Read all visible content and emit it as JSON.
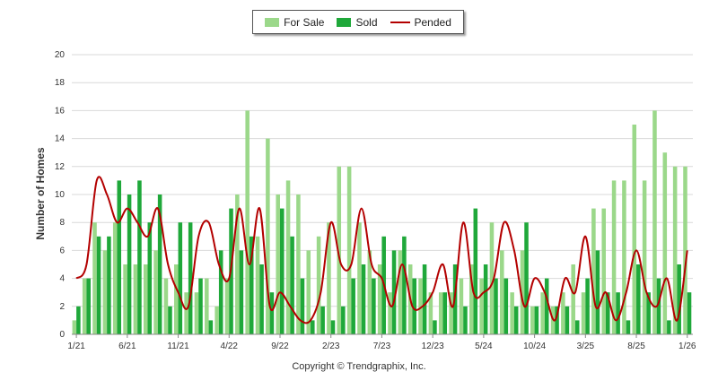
{
  "legend": {
    "for_sale": "For Sale",
    "sold": "Sold",
    "pended": "Pended"
  },
  "copyright": "Copyright © Trendgraphix, Inc.",
  "colors": {
    "for_sale": "#9bd88a",
    "sold": "#1fa83a",
    "pended": "#b30000",
    "grid": "#d9d9d9"
  },
  "chart_data": {
    "type": "bar",
    "ylabel": "Number of Homes",
    "ylim": [
      0,
      20
    ],
    "yticks": [
      0,
      2,
      4,
      6,
      8,
      10,
      12,
      14,
      16,
      18,
      20
    ],
    "grid": true,
    "legend_position": "top-center",
    "xtick_labels": [
      "1/21",
      "6/21",
      "11/21",
      "4/22",
      "9/22",
      "2/23",
      "7/23",
      "12/23",
      "5/24",
      "10/24",
      "3/25",
      "8/25",
      "1/26"
    ],
    "categories": [
      "1/21",
      "2/21",
      "3/21",
      "4/21",
      "5/21",
      "6/21",
      "7/21",
      "8/21",
      "9/21",
      "10/21",
      "11/21",
      "12/21",
      "1/22",
      "2/22",
      "3/22",
      "4/22",
      "5/22",
      "6/22",
      "7/22",
      "8/22",
      "9/22",
      "10/22",
      "11/22",
      "12/22",
      "1/23",
      "2/23",
      "3/23",
      "4/23",
      "5/23",
      "6/23",
      "7/23",
      "8/23",
      "9/23",
      "10/23",
      "11/23",
      "12/23",
      "1/24",
      "2/24",
      "3/24",
      "4/24",
      "5/24",
      "6/24",
      "7/24",
      "8/24",
      "9/24",
      "10/24",
      "11/24",
      "12/24",
      "1/25",
      "2/25",
      "3/25",
      "4/25",
      "5/25",
      "6/25",
      "7/25",
      "8/25",
      "9/25",
      "10/25",
      "11/25",
      "12/25",
      "1/26"
    ],
    "series": [
      {
        "name": "For Sale",
        "type": "bar",
        "values": [
          1,
          4,
          8,
          6,
          8,
          5,
          5,
          5,
          6,
          4,
          5,
          3,
          3,
          4,
          2,
          4,
          10,
          16,
          7,
          14,
          10,
          11,
          10,
          6,
          7,
          8,
          12,
          12,
          8,
          6,
          5,
          3,
          6,
          5,
          4,
          3,
          3,
          3,
          4,
          5,
          4,
          8,
          6,
          3,
          6,
          2,
          3,
          2,
          3,
          5,
          3,
          9,
          9,
          11,
          11,
          15,
          11,
          16,
          13,
          12,
          12
        ]
      },
      {
        "name": "Sold",
        "type": "bar",
        "values": [
          2,
          4,
          7,
          7,
          11,
          10,
          11,
          8,
          10,
          2,
          8,
          8,
          4,
          1,
          6,
          9,
          6,
          7,
          5,
          3,
          9,
          7,
          4,
          1,
          2,
          1,
          2,
          4,
          5,
          4,
          7,
          6,
          7,
          4,
          5,
          1,
          3,
          5,
          2,
          9,
          5,
          4,
          4,
          2,
          8,
          2,
          4,
          2,
          2,
          1,
          4,
          6,
          3,
          3,
          1,
          5,
          3,
          4,
          1,
          5,
          3
        ]
      },
      {
        "name": "Pended",
        "type": "line",
        "values": [
          4,
          5,
          11,
          10,
          8,
          9,
          8,
          7,
          9,
          5,
          3,
          2,
          7,
          8,
          5,
          4,
          9,
          5,
          9,
          2,
          3,
          2,
          1,
          1,
          3,
          8,
          5,
          5,
          9,
          5,
          4,
          2,
          5,
          2,
          2,
          3,
          5,
          2,
          8,
          3,
          3,
          4,
          8,
          6,
          2,
          4,
          3,
          1,
          4,
          3,
          7,
          2,
          3,
          1,
          3,
          6,
          3,
          2,
          4,
          1,
          6
        ]
      }
    ]
  }
}
